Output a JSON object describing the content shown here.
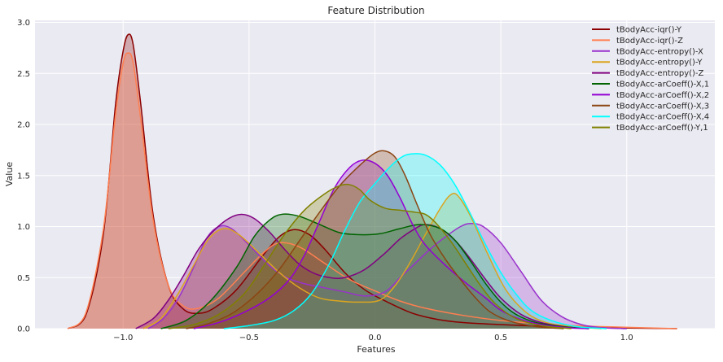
{
  "chart_data": {
    "type": "area",
    "title": "Feature Distribution",
    "xlabel": "Features",
    "ylabel": "Value",
    "xlim": [
      -1.35,
      1.35
    ],
    "ylim": [
      0,
      3.02
    ],
    "xticks": [
      -1.0,
      -0.5,
      0.0,
      0.5,
      1.0
    ],
    "xtick_labels": [
      "−1.0",
      "−0.5",
      "0.0",
      "0.5",
      "1.0"
    ],
    "yticks": [
      0.0,
      0.5,
      1.0,
      1.5,
      2.0,
      2.5,
      3.0
    ],
    "ytick_labels": [
      "0.0",
      "0.5",
      "1.0",
      "1.5",
      "2.0",
      "2.5",
      "3.0"
    ],
    "grid": true,
    "legend_position": "top-right",
    "series": [
      {
        "name": "tBodyAcc-iqr()-Y",
        "color": "#8b0000",
        "points": [
          [
            -1.22,
            0
          ],
          [
            -1.15,
            0.12
          ],
          [
            -1.08,
            0.9
          ],
          [
            -1.03,
            2.2
          ],
          [
            -1.0,
            2.72
          ],
          [
            -0.98,
            2.88
          ],
          [
            -0.96,
            2.78
          ],
          [
            -0.93,
            2.2
          ],
          [
            -0.88,
            1.1
          ],
          [
            -0.82,
            0.42
          ],
          [
            -0.76,
            0.19
          ],
          [
            -0.7,
            0.15
          ],
          [
            -0.64,
            0.2
          ],
          [
            -0.55,
            0.38
          ],
          [
            -0.45,
            0.7
          ],
          [
            -0.38,
            0.9
          ],
          [
            -0.32,
            0.97
          ],
          [
            -0.26,
            0.92
          ],
          [
            -0.2,
            0.78
          ],
          [
            -0.12,
            0.55
          ],
          [
            -0.04,
            0.38
          ],
          [
            0.05,
            0.26
          ],
          [
            0.15,
            0.15
          ],
          [
            0.25,
            0.09
          ],
          [
            0.35,
            0.06
          ],
          [
            0.5,
            0.04
          ],
          [
            0.7,
            0.02
          ],
          [
            0.9,
            0.01
          ],
          [
            1.2,
            0
          ]
        ]
      },
      {
        "name": "tBodyAcc-iqr()-Z",
        "color": "#ff7f50",
        "points": [
          [
            -1.22,
            0
          ],
          [
            -1.15,
            0.14
          ],
          [
            -1.08,
            0.95
          ],
          [
            -1.03,
            2.1
          ],
          [
            -1.0,
            2.6
          ],
          [
            -0.98,
            2.7
          ],
          [
            -0.96,
            2.6
          ],
          [
            -0.93,
            2.05
          ],
          [
            -0.88,
            1.05
          ],
          [
            -0.82,
            0.42
          ],
          [
            -0.76,
            0.22
          ],
          [
            -0.7,
            0.2
          ],
          [
            -0.62,
            0.3
          ],
          [
            -0.52,
            0.55
          ],
          [
            -0.44,
            0.75
          ],
          [
            -0.38,
            0.84
          ],
          [
            -0.3,
            0.8
          ],
          [
            -0.2,
            0.64
          ],
          [
            -0.1,
            0.48
          ],
          [
            0.0,
            0.37
          ],
          [
            0.1,
            0.27
          ],
          [
            0.2,
            0.2
          ],
          [
            0.35,
            0.13
          ],
          [
            0.5,
            0.08
          ],
          [
            0.7,
            0.04
          ],
          [
            0.9,
            0.02
          ],
          [
            1.2,
            0
          ]
        ]
      },
      {
        "name": "tBodyAcc-entropy()-X",
        "color": "#9932cc",
        "points": [
          [
            -0.9,
            0
          ],
          [
            -0.84,
            0.1
          ],
          [
            -0.78,
            0.3
          ],
          [
            -0.72,
            0.6
          ],
          [
            -0.67,
            0.88
          ],
          [
            -0.62,
            1.0
          ],
          [
            -0.57,
            0.98
          ],
          [
            -0.5,
            0.82
          ],
          [
            -0.42,
            0.62
          ],
          [
            -0.35,
            0.5
          ],
          [
            -0.28,
            0.44
          ],
          [
            -0.2,
            0.4
          ],
          [
            -0.12,
            0.36
          ],
          [
            -0.04,
            0.32
          ],
          [
            0.04,
            0.36
          ],
          [
            0.1,
            0.5
          ],
          [
            0.16,
            0.64
          ],
          [
            0.22,
            0.78
          ],
          [
            0.28,
            0.9
          ],
          [
            0.34,
            1.0
          ],
          [
            0.38,
            1.03
          ],
          [
            0.43,
            1.0
          ],
          [
            0.5,
            0.84
          ],
          [
            0.58,
            0.56
          ],
          [
            0.66,
            0.28
          ],
          [
            0.74,
            0.12
          ],
          [
            0.82,
            0.04
          ],
          [
            0.9,
            0.01
          ],
          [
            1.0,
            0
          ]
        ]
      },
      {
        "name": "tBodyAcc-entropy()-Y",
        "color": "#daa520",
        "points": [
          [
            -0.92,
            0
          ],
          [
            -0.85,
            0.1
          ],
          [
            -0.78,
            0.35
          ],
          [
            -0.72,
            0.62
          ],
          [
            -0.66,
            0.88
          ],
          [
            -0.6,
            0.98
          ],
          [
            -0.54,
            0.92
          ],
          [
            -0.46,
            0.74
          ],
          [
            -0.38,
            0.55
          ],
          [
            -0.3,
            0.4
          ],
          [
            -0.22,
            0.3
          ],
          [
            -0.14,
            0.27
          ],
          [
            -0.06,
            0.26
          ],
          [
            0.02,
            0.28
          ],
          [
            0.08,
            0.42
          ],
          [
            0.14,
            0.65
          ],
          [
            0.2,
            0.92
          ],
          [
            0.26,
            1.18
          ],
          [
            0.3,
            1.31
          ],
          [
            0.33,
            1.3
          ],
          [
            0.38,
            1.1
          ],
          [
            0.45,
            0.72
          ],
          [
            0.52,
            0.38
          ],
          [
            0.6,
            0.16
          ],
          [
            0.68,
            0.06
          ],
          [
            0.78,
            0.02
          ],
          [
            0.9,
            0
          ]
        ]
      },
      {
        "name": "tBodyAcc-entropy()-Z",
        "color": "#800080",
        "points": [
          [
            -0.95,
            0
          ],
          [
            -0.88,
            0.1
          ],
          [
            -0.82,
            0.28
          ],
          [
            -0.76,
            0.52
          ],
          [
            -0.7,
            0.78
          ],
          [
            -0.64,
            0.96
          ],
          [
            -0.58,
            1.08
          ],
          [
            -0.53,
            1.12
          ],
          [
            -0.48,
            1.08
          ],
          [
            -0.42,
            0.95
          ],
          [
            -0.36,
            0.78
          ],
          [
            -0.3,
            0.63
          ],
          [
            -0.24,
            0.54
          ],
          [
            -0.18,
            0.5
          ],
          [
            -0.12,
            0.5
          ],
          [
            -0.04,
            0.58
          ],
          [
            0.04,
            0.74
          ],
          [
            0.1,
            0.88
          ],
          [
            0.16,
            0.98
          ],
          [
            0.2,
            1.02
          ],
          [
            0.26,
            0.98
          ],
          [
            0.32,
            0.86
          ],
          [
            0.38,
            0.68
          ],
          [
            0.44,
            0.48
          ],
          [
            0.5,
            0.3
          ],
          [
            0.58,
            0.14
          ],
          [
            0.66,
            0.06
          ],
          [
            0.75,
            0.02
          ],
          [
            0.85,
            0
          ]
        ]
      },
      {
        "name": "tBodyAcc-arCoeff()-X,1",
        "color": "#006400",
        "points": [
          [
            -0.85,
            0
          ],
          [
            -0.75,
            0.08
          ],
          [
            -0.65,
            0.28
          ],
          [
            -0.55,
            0.6
          ],
          [
            -0.48,
            0.9
          ],
          [
            -0.42,
            1.06
          ],
          [
            -0.37,
            1.12
          ],
          [
            -0.3,
            1.1
          ],
          [
            -0.22,
            1.02
          ],
          [
            -0.14,
            0.94
          ],
          [
            -0.06,
            0.92
          ],
          [
            0.02,
            0.93
          ],
          [
            0.1,
            0.98
          ],
          [
            0.18,
            1.02
          ],
          [
            0.26,
            0.98
          ],
          [
            0.32,
            0.86
          ],
          [
            0.38,
            0.66
          ],
          [
            0.44,
            0.44
          ],
          [
            0.5,
            0.26
          ],
          [
            0.56,
            0.14
          ],
          [
            0.64,
            0.06
          ],
          [
            0.74,
            0.02
          ],
          [
            0.85,
            0
          ]
        ]
      },
      {
        "name": "tBodyAcc-arCoeff()-X,2",
        "color": "#9400d3",
        "points": [
          [
            -0.72,
            0
          ],
          [
            -0.62,
            0.06
          ],
          [
            -0.52,
            0.16
          ],
          [
            -0.42,
            0.3
          ],
          [
            -0.34,
            0.48
          ],
          [
            -0.28,
            0.72
          ],
          [
            -0.22,
            1.05
          ],
          [
            -0.16,
            1.38
          ],
          [
            -0.1,
            1.58
          ],
          [
            -0.05,
            1.65
          ],
          [
            0.0,
            1.62
          ],
          [
            0.05,
            1.5
          ],
          [
            0.1,
            1.28
          ],
          [
            0.15,
            1.02
          ],
          [
            0.2,
            0.82
          ],
          [
            0.28,
            0.62
          ],
          [
            0.36,
            0.45
          ],
          [
            0.44,
            0.3
          ],
          [
            0.5,
            0.18
          ],
          [
            0.58,
            0.09
          ],
          [
            0.66,
            0.04
          ],
          [
            0.76,
            0.01
          ],
          [
            0.85,
            0
          ]
        ]
      },
      {
        "name": "tBodyAcc-arCoeff()-X,3",
        "color": "#8b4513",
        "points": [
          [
            -0.75,
            0
          ],
          [
            -0.66,
            0.05
          ],
          [
            -0.56,
            0.16
          ],
          [
            -0.46,
            0.36
          ],
          [
            -0.38,
            0.58
          ],
          [
            -0.3,
            0.86
          ],
          [
            -0.22,
            1.14
          ],
          [
            -0.14,
            1.4
          ],
          [
            -0.06,
            1.6
          ],
          [
            0.0,
            1.72
          ],
          [
            0.04,
            1.74
          ],
          [
            0.08,
            1.68
          ],
          [
            0.12,
            1.5
          ],
          [
            0.17,
            1.2
          ],
          [
            0.22,
            0.92
          ],
          [
            0.28,
            0.68
          ],
          [
            0.34,
            0.48
          ],
          [
            0.4,
            0.3
          ],
          [
            0.46,
            0.16
          ],
          [
            0.54,
            0.07
          ],
          [
            0.64,
            0.02
          ],
          [
            0.75,
            0
          ]
        ]
      },
      {
        "name": "tBodyAcc-arCoeff()-X,4",
        "color": "#00ffff",
        "points": [
          [
            -0.6,
            0
          ],
          [
            -0.5,
            0.03
          ],
          [
            -0.4,
            0.08
          ],
          [
            -0.32,
            0.18
          ],
          [
            -0.25,
            0.35
          ],
          [
            -0.18,
            0.64
          ],
          [
            -0.12,
            0.96
          ],
          [
            -0.06,
            1.24
          ],
          [
            0.0,
            1.42
          ],
          [
            0.05,
            1.56
          ],
          [
            0.1,
            1.67
          ],
          [
            0.14,
            1.71
          ],
          [
            0.2,
            1.7
          ],
          [
            0.26,
            1.6
          ],
          [
            0.32,
            1.4
          ],
          [
            0.38,
            1.12
          ],
          [
            0.44,
            0.82
          ],
          [
            0.5,
            0.55
          ],
          [
            0.56,
            0.34
          ],
          [
            0.62,
            0.18
          ],
          [
            0.7,
            0.08
          ],
          [
            0.8,
            0.02
          ],
          [
            0.92,
            0
          ]
        ]
      },
      {
        "name": "tBodyAcc-arCoeff()-Y,1",
        "color": "#808000",
        "points": [
          [
            -0.82,
            0
          ],
          [
            -0.72,
            0.04
          ],
          [
            -0.62,
            0.14
          ],
          [
            -0.52,
            0.34
          ],
          [
            -0.44,
            0.62
          ],
          [
            -0.36,
            0.92
          ],
          [
            -0.28,
            1.16
          ],
          [
            -0.2,
            1.32
          ],
          [
            -0.14,
            1.4
          ],
          [
            -0.1,
            1.41
          ],
          [
            -0.06,
            1.36
          ],
          [
            -0.02,
            1.26
          ],
          [
            0.04,
            1.18
          ],
          [
            0.1,
            1.16
          ],
          [
            0.16,
            1.14
          ],
          [
            0.2,
            1.12
          ],
          [
            0.24,
            1.04
          ],
          [
            0.3,
            0.86
          ],
          [
            0.36,
            0.64
          ],
          [
            0.42,
            0.42
          ],
          [
            0.48,
            0.24
          ],
          [
            0.56,
            0.1
          ],
          [
            0.66,
            0.03
          ],
          [
            0.78,
            0
          ]
        ]
      }
    ]
  }
}
